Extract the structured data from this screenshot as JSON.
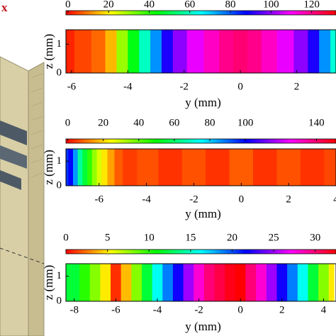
{
  "figure": {
    "label": "x"
  },
  "chart_data": [
    {
      "type": "heatmap",
      "xlabel": "y (mm)",
      "ylabel": "z (mm)",
      "clim": [
        -1,
        132
      ],
      "colorbar_ticks": [
        0,
        20,
        40,
        60,
        80,
        100,
        120
      ],
      "xlim": [
        -6.2,
        3.4
      ],
      "xticks": [
        -6,
        -4,
        -2,
        0,
        2
      ],
      "ylim": [
        0,
        1.5
      ],
      "yticks": [
        0,
        1
      ],
      "x": [
        -6.2,
        -5.6,
        -5,
        -4.6,
        -4.2,
        -3.8,
        -3.4,
        -3,
        -2.6,
        -2.2,
        -1.6,
        -1,
        -0.5,
        0,
        0.5,
        1,
        1.6,
        2.2,
        2.6,
        3,
        3.4
      ],
      "values": [
        2,
        5,
        8,
        15,
        30,
        45,
        60,
        75,
        90,
        100,
        108,
        115,
        120,
        122,
        120,
        115,
        108,
        100,
        90,
        75,
        62
      ]
    },
    {
      "type": "heatmap",
      "xlabel": "y (mm)",
      "ylabel": "z (mm)",
      "clim": [
        -1,
        151
      ],
      "colorbar_ticks": [
        0,
        20,
        40,
        60,
        80,
        100,
        140
      ],
      "xlim": [
        -7.4,
        4
      ],
      "xticks": [
        -6,
        -4,
        -2,
        0,
        2,
        4
      ],
      "ylim": [
        0,
        1.5
      ],
      "yticks": [
        0,
        1
      ],
      "x": [
        -7.4,
        -7.2,
        -7,
        -6.8,
        -6.6,
        -6.4,
        -6.2,
        -6,
        -5.8,
        -5.5,
        -5.2,
        -4.8,
        -4,
        -3,
        -2,
        -1,
        0,
        1,
        2,
        3,
        4
      ],
      "values": [
        95,
        100,
        85,
        65,
        55,
        45,
        35,
        28,
        22,
        15,
        8,
        5,
        7,
        4,
        7,
        4,
        8,
        4,
        7,
        4,
        6
      ]
    },
    {
      "type": "heatmap",
      "xlabel": "y (mm)",
      "ylabel": "z (mm)",
      "clim": [
        0,
        32.5
      ],
      "colorbar_ticks": [
        0,
        5,
        10,
        15,
        20,
        25,
        30
      ],
      "xlim": [
        -8.4,
        4.6
      ],
      "xticks": [
        -8,
        -6,
        -4,
        -2,
        0,
        2,
        4
      ],
      "ylim": [
        0,
        1.5
      ],
      "yticks": [
        0,
        1
      ],
      "x": [
        -8.4,
        -8,
        -7.5,
        -7,
        -6.5,
        -6,
        -5.5,
        -5,
        -4.5,
        -4,
        -3.5,
        -3,
        -2.5,
        -2,
        -1.5,
        -1,
        -0.5,
        0,
        0.5,
        1,
        1.5,
        2,
        2.5,
        3,
        3.5,
        4,
        4.5
      ],
      "values": [
        12,
        12,
        10,
        8,
        5,
        1,
        4,
        8,
        12,
        16,
        19,
        22,
        25,
        28,
        30,
        31,
        32,
        32.5,
        30,
        28,
        25,
        22,
        19,
        16,
        12,
        8,
        5
      ]
    }
  ]
}
